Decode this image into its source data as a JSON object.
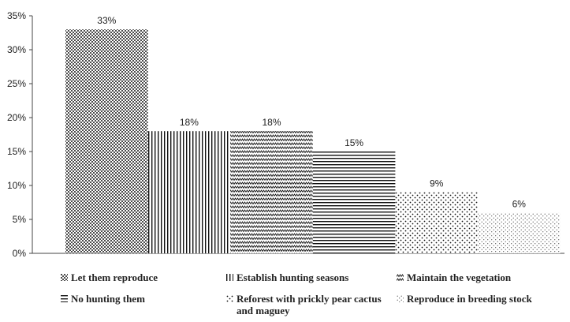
{
  "chart_data": {
    "type": "bar",
    "title": "",
    "xlabel": "",
    "ylabel": "",
    "ylim": [
      0,
      35
    ],
    "yticks": [
      "0%",
      "5%",
      "10%",
      "15%",
      "20%",
      "25%",
      "30%",
      "35%"
    ],
    "grid": false,
    "legend_position": "bottom",
    "categories": [
      "Let them reproduce",
      "Establish hunting seasons",
      "Maintain the vegetation",
      "No hunting them",
      "Reforest with prickly pear cactus and maguey",
      "Reproduce in breeding stock"
    ],
    "values": [
      33,
      18,
      18,
      15,
      9,
      6
    ],
    "data_labels": [
      "33%",
      "18%",
      "18%",
      "15%",
      "9%",
      "6%"
    ],
    "patterns": [
      "dense-dots",
      "vertical-lines",
      "zigzag",
      "horizontal-lines",
      "sparse-dots",
      "fine-dots"
    ],
    "colors": {
      "bar_fill": "#ffffff",
      "pattern": "#222222",
      "axis": "#444444"
    }
  }
}
